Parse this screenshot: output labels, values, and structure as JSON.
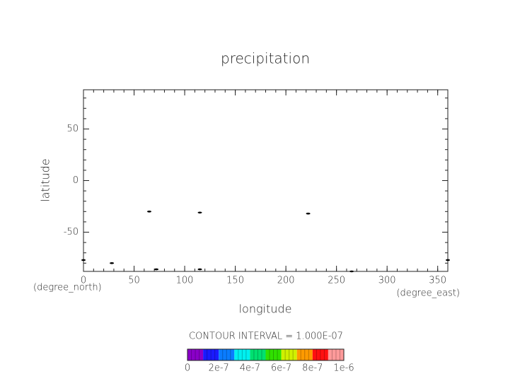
{
  "chart_data": {
    "type": "contour",
    "title": "precipitation",
    "xlabel": "longitude",
    "ylabel": "latitude",
    "xunit": "(degree_east)",
    "yunit": "(degree_north)",
    "xlim": [
      0,
      360
    ],
    "ylim": [
      -88,
      88
    ],
    "xticks": [
      0,
      50,
      100,
      150,
      200,
      250,
      300,
      350
    ],
    "yticks": [
      -50,
      0,
      50
    ],
    "xminor_step": 10,
    "yminor_step": 10,
    "series": [
      {
        "color": "#000000",
        "x": [
          65,
          115,
          222,
          28,
          72,
          115,
          265,
          0,
          360
        ],
        "y": [
          -30,
          -31,
          -32,
          -80,
          -86,
          -86,
          -88,
          -77,
          -77
        ]
      }
    ],
    "contour_interval": "CONTOUR INTERVAL = 1.000E-07",
    "colorbar": {
      "lim": [
        0,
        1e-06
      ],
      "colors": [
        "#8a00c8",
        "#1a1aff",
        "#0a7cff",
        "#00f0f0",
        "#00e070",
        "#30e000",
        "#d0f000",
        "#ff9a00",
        "#ff1010",
        "#ff9a9a"
      ],
      "ticks": [
        0,
        {
          "value": 2e-07,
          "label": "2e-7"
        },
        {
          "value": 4e-07,
          "label": "4e-7"
        },
        {
          "value": 6e-07,
          "label": "6e-7"
        },
        {
          "value": 8e-07,
          "label": "8e-7"
        },
        {
          "value": 1e-06,
          "label": "1e-6"
        }
      ]
    }
  }
}
